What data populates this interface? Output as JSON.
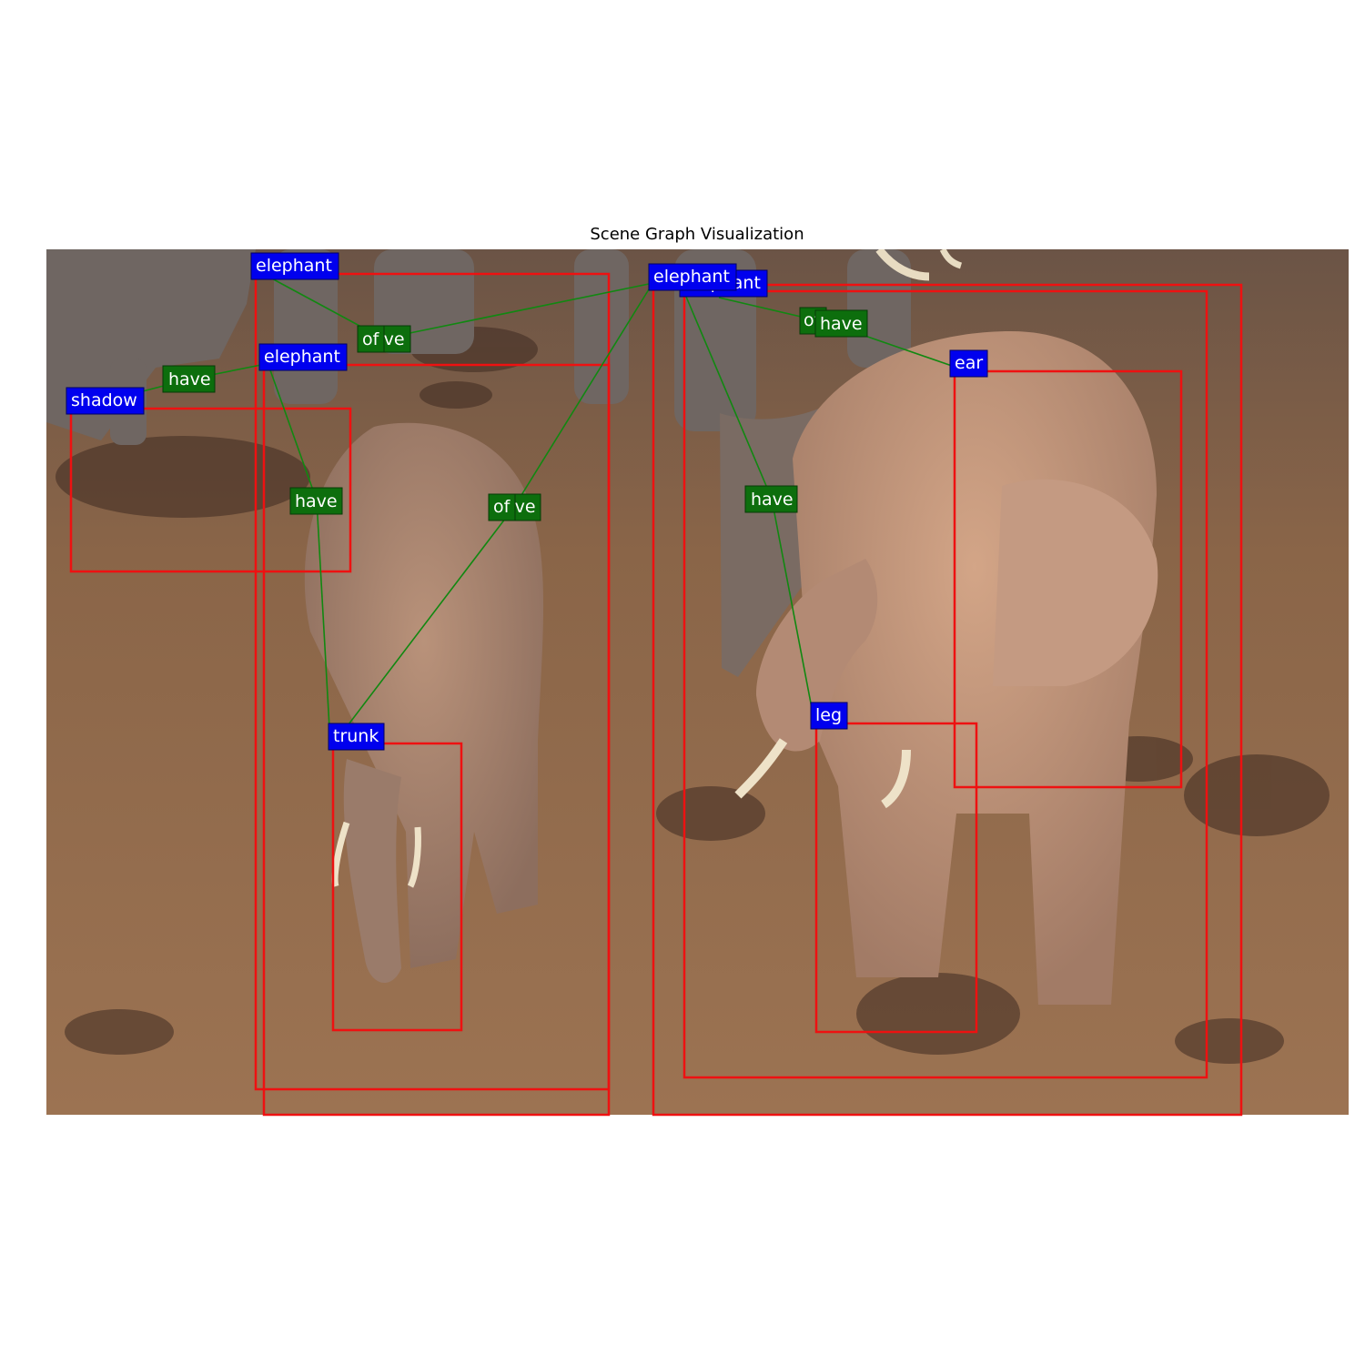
{
  "title": "Scene Graph Visualization",
  "colors": {
    "box": "#ee1111",
    "object_label_bg": "#0000ee",
    "predicate_label_bg": "#0d6e0d",
    "edge": "#118811",
    "label_text": "#ffffff"
  },
  "objects": [
    {
      "label": "elephant"
    },
    {
      "label": "elephant"
    },
    {
      "label": "elephant"
    },
    {
      "label": "elephant"
    },
    {
      "label": "shadow"
    },
    {
      "label": "trunk"
    },
    {
      "label": "ear"
    },
    {
      "label": "leg"
    }
  ],
  "relations": [
    {
      "subject": 1,
      "predicate": "have",
      "object": 4
    },
    {
      "subject": 1,
      "predicate": "have",
      "object": 5
    },
    {
      "subject": 2,
      "predicate": "of",
      "object": 0
    },
    {
      "subject": 2,
      "predicate": "have",
      "object": 0
    },
    {
      "subject": 2,
      "predicate": "of",
      "object": 5
    },
    {
      "subject": 2,
      "predicate": "have",
      "object": 5
    },
    {
      "subject": 2,
      "predicate": "have",
      "object": 7
    },
    {
      "subject": 3,
      "predicate": "of",
      "object": 6
    },
    {
      "subject": 3,
      "predicate": "have",
      "object": 6
    }
  ]
}
